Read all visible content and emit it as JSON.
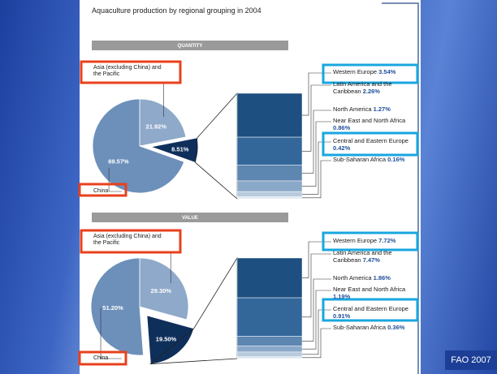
{
  "title": "Aquaculture production by regional grouping in 2004",
  "source": "FAO 2007",
  "chart_data": [
    {
      "type": "pie",
      "title": "QUANTITY",
      "categories": [
        "Asia (excluding China) and the Pacific",
        null,
        "China"
      ],
      "values": [
        21.92,
        8.51,
        69.57
      ],
      "value_labels": [
        "21.92%",
        "8.51%",
        "69.57%"
      ],
      "colors": [
        "#8ea9c9",
        "#0f2f5b",
        "#6d90bb"
      ],
      "breakdown": {
        "categories": [
          "Western Europe",
          "Latin America and the Caribbean",
          "North America",
          "Near East and North Africa",
          "Central and Eastern Europe",
          "Sub-Saharan Africa"
        ],
        "values": [
          3.54,
          2.26,
          1.27,
          0.86,
          0.42,
          0.16
        ],
        "value_labels": [
          "3.54%",
          "2.26%",
          "1.27%",
          "0.86%",
          "0.42%",
          "0.16%"
        ],
        "colors": [
          "#1d4f80",
          "#33679a",
          "#5d86b0",
          "#8aa8c8",
          "#b8cadd",
          "#dfe7f0"
        ]
      }
    },
    {
      "type": "pie",
      "title": "VALUE",
      "categories": [
        "Asia (excluding China) and the Pacific",
        null,
        "China"
      ],
      "values": [
        29.3,
        19.5,
        51.2
      ],
      "value_labels": [
        "29.30%",
        "19.50%",
        "51.20%"
      ],
      "colors": [
        "#8ea9c9",
        "#0f2f5b",
        "#6d90bb"
      ],
      "breakdown": {
        "categories": [
          "Western Europe",
          "Latin America and the Caribbean",
          "North America",
          "Near East and North Africa",
          "Central and Eastern Europe",
          "Sub-Saharan Africa"
        ],
        "values": [
          7.72,
          7.47,
          1.86,
          1.19,
          0.91,
          0.36
        ],
        "value_labels": [
          "7.72%",
          "7.47%",
          "1.86%",
          "1.19%",
          "0.91%",
          "0.36%"
        ],
        "colors": [
          "#1d4f80",
          "#33679a",
          "#5d86b0",
          "#8aa8c8",
          "#b8cadd",
          "#dfe7f0"
        ]
      }
    }
  ]
}
